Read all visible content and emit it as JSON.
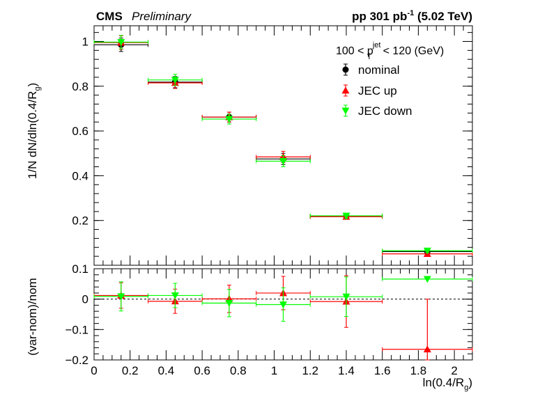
{
  "header": {
    "experiment": "CMS",
    "status": "Preliminary",
    "lumi_main": "pp 301 pb",
    "lumi_sup": "-1",
    "lumi_energy": " (5.02 TeV)"
  },
  "kinematic_label": {
    "prefix": "100 < p",
    "sup": "jet",
    "sub": "T",
    "suffix": " < 120 (GeV)"
  },
  "chart_data": [
    {
      "type": "scatter",
      "panel": "top",
      "ylabel": "1/N dN/dln(0.4/R",
      "ylabel_sub": "g",
      "ylabel_tail": ")",
      "xlim": [
        0,
        2.1
      ],
      "ylim": [
        0,
        1.07
      ],
      "yticks": [
        0.2,
        0.4,
        0.6,
        0.8,
        1
      ],
      "ytick_labels": [
        "0.2",
        "0.4",
        "0.6",
        "0.8",
        "1"
      ],
      "bins": [
        [
          0,
          0.3
        ],
        [
          0.3,
          0.6
        ],
        [
          0.6,
          0.9
        ],
        [
          0.9,
          1.2
        ],
        [
          1.2,
          1.6
        ],
        [
          1.6,
          2.1
        ]
      ],
      "x": [
        0.15,
        0.45,
        0.75,
        1.05,
        1.4,
        1.85
      ],
      "legend_position": "top-right",
      "series": [
        {
          "name": "nominal",
          "color": "#000000",
          "marker": "circle",
          "values": [
            0.985,
            0.818,
            0.662,
            0.475,
            0.219,
            0.061
          ],
          "errors": [
            0.03,
            0.025,
            0.022,
            0.025,
            0.012,
            0.008
          ]
        },
        {
          "name": "JEC up",
          "color": "#ff0000",
          "marker": "triangle-up",
          "values": [
            0.995,
            0.815,
            0.662,
            0.484,
            0.217,
            0.051
          ],
          "errors": [
            0.03,
            0.025,
            0.022,
            0.025,
            0.012,
            0.008
          ]
        },
        {
          "name": "JEC down",
          "color": "#00ff00",
          "marker": "triangle-down",
          "values": [
            0.997,
            0.828,
            0.653,
            0.465,
            0.221,
            0.065
          ],
          "errors": [
            0.03,
            0.025,
            0.022,
            0.025,
            0.012,
            0.008
          ]
        }
      ]
    },
    {
      "type": "scatter",
      "panel": "bottom",
      "xlabel": "ln(0.4/R",
      "xlabel_sub": "g",
      "xlabel_tail": ")",
      "ylabel": "(var-nom)/nom",
      "xlim": [
        0,
        2.1
      ],
      "ylim": [
        -0.2,
        0.1
      ],
      "yticks": [
        -0.2,
        -0.1,
        0,
        0.1
      ],
      "ytick_labels": [
        "−0.2",
        "−0.1",
        "0",
        "0.1"
      ],
      "xticks": [
        0,
        0.2,
        0.4,
        0.6,
        0.8,
        1,
        1.2,
        1.4,
        1.6,
        1.8,
        2
      ],
      "xtick_labels": [
        "0",
        "0.2",
        "0.4",
        "0.6",
        "0.8",
        "1",
        "1.2",
        "1.4",
        "1.6",
        "1.8",
        "2"
      ],
      "reference_line": 0,
      "bins": [
        [
          0,
          0.3
        ],
        [
          0.3,
          0.6
        ],
        [
          0.6,
          0.9
        ],
        [
          0.9,
          1.2
        ],
        [
          1.2,
          1.6
        ],
        [
          1.6,
          2.1
        ]
      ],
      "x": [
        0.15,
        0.45,
        0.75,
        1.05,
        1.4,
        1.85
      ],
      "series": [
        {
          "name": "JEC up",
          "color": "#ff0000",
          "marker": "triangle-up",
          "values": [
            0.012,
            -0.007,
            0.001,
            0.02,
            -0.008,
            -0.165
          ],
          "errors": [
            0.042,
            0.04,
            0.045,
            0.055,
            0.085,
            0.165
          ]
        },
        {
          "name": "JEC down",
          "color": "#00ff00",
          "marker": "triangle-down",
          "values": [
            0.009,
            0.012,
            -0.013,
            -0.018,
            0.008,
            0.066
          ],
          "errors": [
            0.048,
            0.04,
            0.045,
            0.055,
            0.065,
            0.0
          ]
        }
      ]
    }
  ]
}
